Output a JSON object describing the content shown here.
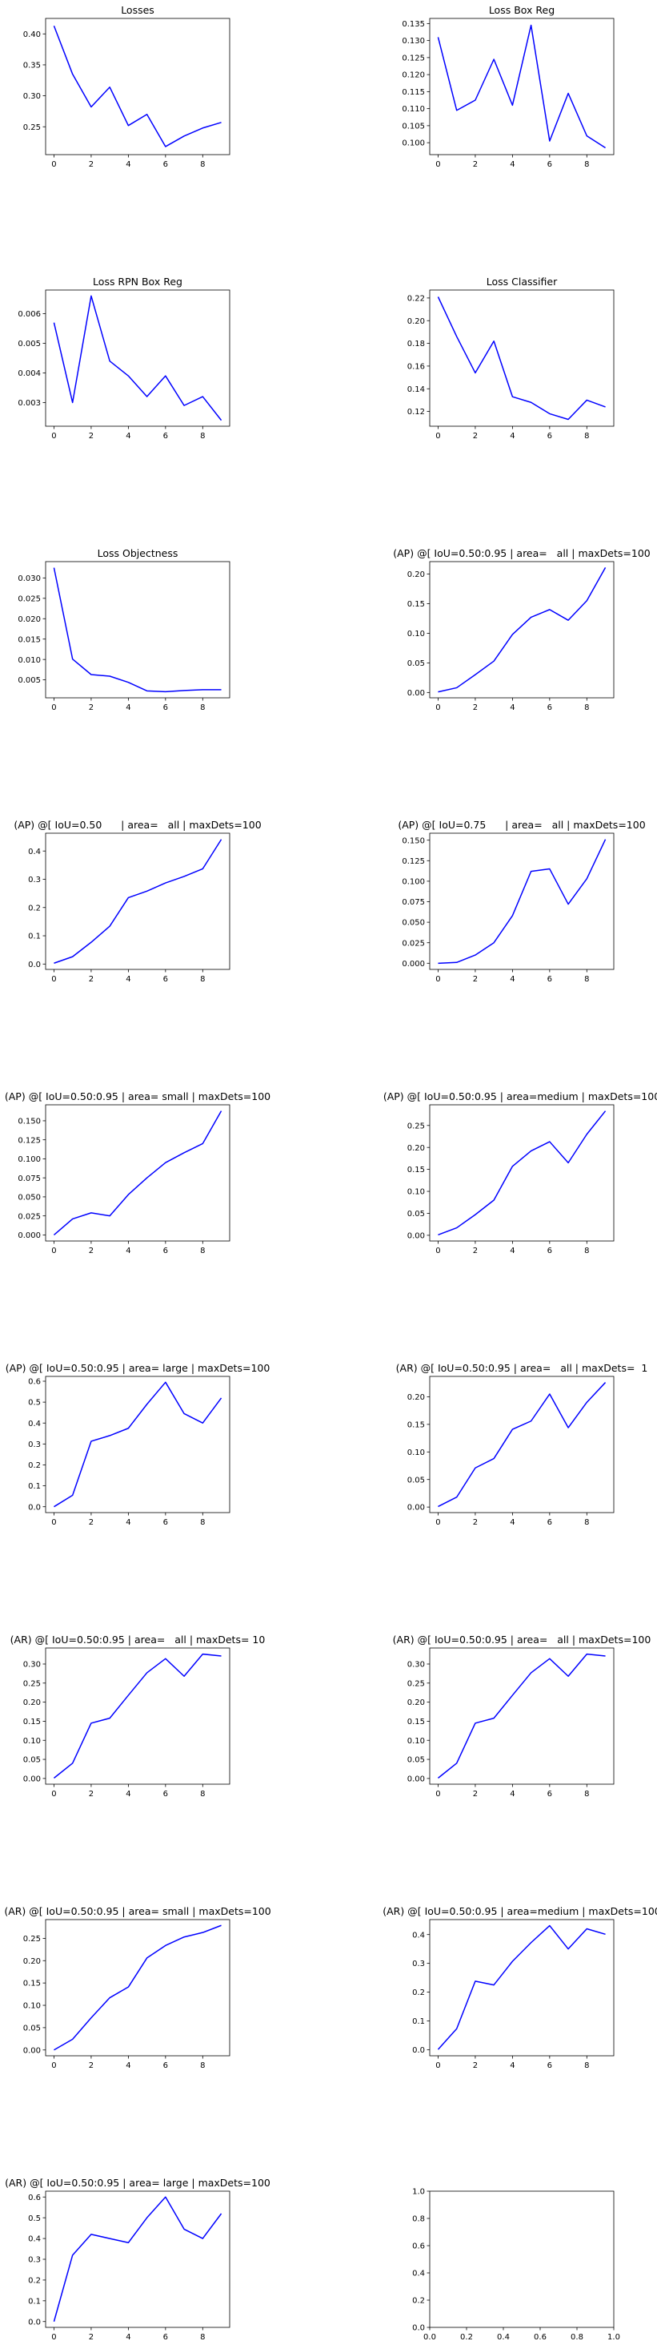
{
  "figure": {
    "line_color": "#0000ff",
    "axes_color": "#000000",
    "background": "#ffffff"
  },
  "chart_data": [
    {
      "type": "line",
      "title": "Losses",
      "x": [
        0,
        1,
        2,
        3,
        4,
        5,
        6,
        7,
        8,
        9
      ],
      "series": [
        {
          "values": [
            0.413,
            0.335,
            0.282,
            0.314,
            0.252,
            0.27,
            0.218,
            0.235,
            0.248,
            0.257
          ]
        }
      ],
      "xlim": [
        -0.45,
        9.45
      ],
      "ylim": [
        0.205,
        0.425
      ],
      "xticks": [
        0,
        2,
        4,
        6,
        8
      ],
      "xtick_labels": [
        "0",
        "2",
        "4",
        "6",
        "8"
      ],
      "yticks": [
        0.25,
        0.3,
        0.35,
        0.4
      ],
      "ytick_labels": [
        "0.25",
        "0.30",
        "0.35",
        "0.40"
      ]
    },
    {
      "type": "line",
      "title": "Loss Box Reg",
      "x": [
        0,
        1,
        2,
        3,
        4,
        5,
        6,
        7,
        8,
        9
      ],
      "series": [
        {
          "values": [
            0.131,
            0.1095,
            0.1125,
            0.1245,
            0.111,
            0.1345,
            0.1005,
            0.1145,
            0.102,
            0.0985
          ]
        }
      ],
      "xlim": [
        -0.45,
        9.45
      ],
      "ylim": [
        0.0965,
        0.1365
      ],
      "xticks": [
        0,
        2,
        4,
        6,
        8
      ],
      "xtick_labels": [
        "0",
        "2",
        "4",
        "6",
        "8"
      ],
      "yticks": [
        0.1,
        0.105,
        0.11,
        0.115,
        0.12,
        0.125,
        0.13,
        0.135
      ],
      "ytick_labels": [
        "0.100",
        "0.105",
        "0.110",
        "0.115",
        "0.120",
        "0.125",
        "0.130",
        "0.135"
      ]
    },
    {
      "type": "line",
      "title": "Loss RPN Box Reg",
      "x": [
        0,
        1,
        2,
        3,
        4,
        5,
        6,
        7,
        8,
        9
      ],
      "series": [
        {
          "values": [
            0.0057,
            0.003,
            0.0066,
            0.0044,
            0.0039,
            0.0032,
            0.0039,
            0.0029,
            0.0032,
            0.0024
          ]
        }
      ],
      "xlim": [
        -0.45,
        9.45
      ],
      "ylim": [
        0.0022,
        0.0068
      ],
      "xticks": [
        0,
        2,
        4,
        6,
        8
      ],
      "xtick_labels": [
        "0",
        "2",
        "4",
        "6",
        "8"
      ],
      "yticks": [
        0.003,
        0.004,
        0.005,
        0.006
      ],
      "ytick_labels": [
        "0.003",
        "0.004",
        "0.005",
        "0.006"
      ]
    },
    {
      "type": "line",
      "title": "Loss Classifier",
      "x": [
        0,
        1,
        2,
        3,
        4,
        5,
        6,
        7,
        8,
        9
      ],
      "series": [
        {
          "values": [
            0.221,
            0.186,
            0.154,
            0.182,
            0.133,
            0.128,
            0.118,
            0.113,
            0.13,
            0.124
          ]
        }
      ],
      "xlim": [
        -0.45,
        9.45
      ],
      "ylim": [
        0.107,
        0.227
      ],
      "xticks": [
        0,
        2,
        4,
        6,
        8
      ],
      "xtick_labels": [
        "0",
        "2",
        "4",
        "6",
        "8"
      ],
      "yticks": [
        0.12,
        0.14,
        0.16,
        0.18,
        0.2,
        0.22
      ],
      "ytick_labels": [
        "0.12",
        "0.14",
        "0.16",
        "0.18",
        "0.20",
        "0.22"
      ]
    },
    {
      "type": "line",
      "title": "Loss Objectness",
      "x": [
        0,
        1,
        2,
        3,
        4,
        5,
        6,
        7,
        8,
        9
      ],
      "series": [
        {
          "values": [
            0.0325,
            0.0101,
            0.0063,
            0.0059,
            0.0044,
            0.0023,
            0.0021,
            0.0024,
            0.0026,
            0.0026
          ]
        }
      ],
      "xlim": [
        -0.45,
        9.45
      ],
      "ylim": [
        0.0006,
        0.034
      ],
      "xticks": [
        0,
        2,
        4,
        6,
        8
      ],
      "xtick_labels": [
        "0",
        "2",
        "4",
        "6",
        "8"
      ],
      "yticks": [
        0.005,
        0.01,
        0.015,
        0.02,
        0.025,
        0.03
      ],
      "ytick_labels": [
        "0.005",
        "0.010",
        "0.015",
        "0.020",
        "0.025",
        "0.030"
      ]
    },
    {
      "type": "line",
      "title": "(AP) @[ IoU=0.50:0.95 | area=   all | maxDets=100",
      "x": [
        0,
        1,
        2,
        3,
        4,
        5,
        6,
        7,
        8,
        9
      ],
      "series": [
        {
          "values": [
            0.001,
            0.008,
            0.03,
            0.053,
            0.098,
            0.127,
            0.14,
            0.122,
            0.155,
            0.211
          ]
        }
      ],
      "xlim": [
        -0.45,
        9.45
      ],
      "ylim": [
        -0.009,
        0.221
      ],
      "xticks": [
        0,
        2,
        4,
        6,
        8
      ],
      "xtick_labels": [
        "0",
        "2",
        "4",
        "6",
        "8"
      ],
      "yticks": [
        0.0,
        0.05,
        0.1,
        0.15,
        0.2
      ],
      "ytick_labels": [
        "0.00",
        "0.05",
        "0.10",
        "0.15",
        "0.20"
      ]
    },
    {
      "type": "line",
      "title": "(AP) @[ IoU=0.50      | area=   all | maxDets=100",
      "x": [
        0,
        1,
        2,
        3,
        4,
        5,
        6,
        7,
        8,
        9
      ],
      "series": [
        {
          "values": [
            0.003,
            0.026,
            0.077,
            0.134,
            0.235,
            0.258,
            0.287,
            0.31,
            0.337,
            0.441
          ]
        }
      ],
      "xlim": [
        -0.45,
        9.45
      ],
      "ylim": [
        -0.019,
        0.463
      ],
      "xticks": [
        0,
        2,
        4,
        6,
        8
      ],
      "xtick_labels": [
        "0",
        "2",
        "4",
        "6",
        "8"
      ],
      "yticks": [
        0.0,
        0.1,
        0.2,
        0.3,
        0.4
      ],
      "ytick_labels": [
        "0.0",
        "0.1",
        "0.2",
        "0.3",
        "0.4"
      ]
    },
    {
      "type": "line",
      "title": "(AP) @[ IoU=0.75      | area=   all | maxDets=100",
      "x": [
        0,
        1,
        2,
        3,
        4,
        5,
        6,
        7,
        8,
        9
      ],
      "series": [
        {
          "values": [
            0.0,
            0.001,
            0.01,
            0.025,
            0.058,
            0.112,
            0.115,
            0.072,
            0.103,
            0.151
          ]
        }
      ],
      "xlim": [
        -0.45,
        9.45
      ],
      "ylim": [
        -0.0075,
        0.1585
      ],
      "xticks": [
        0,
        2,
        4,
        6,
        8
      ],
      "xtick_labels": [
        "0",
        "2",
        "4",
        "6",
        "8"
      ],
      "yticks": [
        0.0,
        0.025,
        0.05,
        0.075,
        0.1,
        0.125,
        0.15
      ],
      "ytick_labels": [
        "0.000",
        "0.025",
        "0.050",
        "0.075",
        "0.100",
        "0.125",
        "0.150"
      ]
    },
    {
      "type": "line",
      "title": "(AP) @[ IoU=0.50:0.95 | area= small | maxDets=100",
      "x": [
        0,
        1,
        2,
        3,
        4,
        5,
        6,
        7,
        8,
        9
      ],
      "series": [
        {
          "values": [
            0.0,
            0.021,
            0.029,
            0.025,
            0.053,
            0.075,
            0.095,
            0.108,
            0.12,
            0.163
          ]
        }
      ],
      "xlim": [
        -0.45,
        9.45
      ],
      "ylim": [
        -0.008,
        0.171
      ],
      "xticks": [
        0,
        2,
        4,
        6,
        8
      ],
      "xtick_labels": [
        "0",
        "2",
        "4",
        "6",
        "8"
      ],
      "yticks": [
        0.0,
        0.025,
        0.05,
        0.075,
        0.1,
        0.125,
        0.15
      ],
      "ytick_labels": [
        "0.000",
        "0.025",
        "0.050",
        "0.075",
        "0.100",
        "0.125",
        "0.150"
      ]
    },
    {
      "type": "line",
      "title": "(AP) @[ IoU=0.50:0.95 | area=medium | maxDets=100",
      "x": [
        0,
        1,
        2,
        3,
        4,
        5,
        6,
        7,
        8,
        9
      ],
      "series": [
        {
          "values": [
            0.001,
            0.017,
            0.047,
            0.08,
            0.157,
            0.192,
            0.213,
            0.165,
            0.23,
            0.283
          ]
        }
      ],
      "xlim": [
        -0.45,
        9.45
      ],
      "ylim": [
        -0.013,
        0.297
      ],
      "xticks": [
        0,
        2,
        4,
        6,
        8
      ],
      "xtick_labels": [
        "0",
        "2",
        "4",
        "6",
        "8"
      ],
      "yticks": [
        0.0,
        0.05,
        0.1,
        0.15,
        0.2,
        0.25
      ],
      "ytick_labels": [
        "0.00",
        "0.05",
        "0.10",
        "0.15",
        "0.20",
        "0.25"
      ]
    },
    {
      "type": "line",
      "title": "(AP) @[ IoU=0.50:0.95 | area= large | maxDets=100",
      "x": [
        0,
        1,
        2,
        3,
        4,
        5,
        6,
        7,
        8,
        9
      ],
      "series": [
        {
          "values": [
            0.0,
            0.055,
            0.313,
            0.34,
            0.375,
            0.49,
            0.595,
            0.445,
            0.4,
            0.52
          ]
        }
      ],
      "xlim": [
        -0.45,
        9.45
      ],
      "ylim": [
        -0.028,
        0.623
      ],
      "xticks": [
        0,
        2,
        4,
        6,
        8
      ],
      "xtick_labels": [
        "0",
        "2",
        "4",
        "6",
        "8"
      ],
      "yticks": [
        0.0,
        0.1,
        0.2,
        0.3,
        0.4,
        0.5,
        0.6
      ],
      "ytick_labels": [
        "0.0",
        "0.1",
        "0.2",
        "0.3",
        "0.4",
        "0.5",
        "0.6"
      ]
    },
    {
      "type": "line",
      "title": "(AR) @[ IoU=0.50:0.95 | area=   all | maxDets=  1",
      "x": [
        0,
        1,
        2,
        3,
        4,
        5,
        6,
        7,
        8,
        9
      ],
      "series": [
        {
          "values": [
            0.001,
            0.018,
            0.071,
            0.088,
            0.141,
            0.156,
            0.205,
            0.144,
            0.19,
            0.226
          ]
        }
      ],
      "xlim": [
        -0.45,
        9.45
      ],
      "ylim": [
        -0.01,
        0.237
      ],
      "xticks": [
        0,
        2,
        4,
        6,
        8
      ],
      "xtick_labels": [
        "0",
        "2",
        "4",
        "6",
        "8"
      ],
      "yticks": [
        0.0,
        0.05,
        0.1,
        0.15,
        0.2
      ],
      "ytick_labels": [
        "0.00",
        "0.05",
        "0.10",
        "0.15",
        "0.20"
      ]
    },
    {
      "type": "line",
      "title": "(AR) @[ IoU=0.50:0.95 | area=   all | maxDets= 10",
      "x": [
        0,
        1,
        2,
        3,
        4,
        5,
        6,
        7,
        8,
        9
      ],
      "series": [
        {
          "values": [
            0.001,
            0.04,
            0.145,
            0.158,
            0.218,
            0.277,
            0.314,
            0.268,
            0.326,
            0.321
          ]
        }
      ],
      "xlim": [
        -0.45,
        9.45
      ],
      "ylim": [
        -0.015,
        0.342
      ],
      "xticks": [
        0,
        2,
        4,
        6,
        8
      ],
      "xtick_labels": [
        "0",
        "2",
        "4",
        "6",
        "8"
      ],
      "yticks": [
        0.0,
        0.05,
        0.1,
        0.15,
        0.2,
        0.25,
        0.3
      ],
      "ytick_labels": [
        "0.00",
        "0.05",
        "0.10",
        "0.15",
        "0.20",
        "0.25",
        "0.30"
      ]
    },
    {
      "type": "line",
      "title": "(AR) @[ IoU=0.50:0.95 | area=   all | maxDets=100",
      "x": [
        0,
        1,
        2,
        3,
        4,
        5,
        6,
        7,
        8,
        9
      ],
      "series": [
        {
          "values": [
            0.001,
            0.04,
            0.145,
            0.158,
            0.218,
            0.277,
            0.314,
            0.268,
            0.326,
            0.321
          ]
        }
      ],
      "xlim": [
        -0.45,
        9.45
      ],
      "ylim": [
        -0.015,
        0.342
      ],
      "xticks": [
        0,
        2,
        4,
        6,
        8
      ],
      "xtick_labels": [
        "0",
        "2",
        "4",
        "6",
        "8"
      ],
      "yticks": [
        0.0,
        0.05,
        0.1,
        0.15,
        0.2,
        0.25,
        0.3
      ],
      "ytick_labels": [
        "0.00",
        "0.05",
        "0.10",
        "0.15",
        "0.20",
        "0.25",
        "0.30"
      ]
    },
    {
      "type": "line",
      "title": "(AR) @[ IoU=0.50:0.95 | area= small | maxDets=100",
      "x": [
        0,
        1,
        2,
        3,
        4,
        5,
        6,
        7,
        8,
        9
      ],
      "series": [
        {
          "values": [
            0.0,
            0.024,
            0.072,
            0.117,
            0.141,
            0.206,
            0.234,
            0.253,
            0.263,
            0.279
          ]
        }
      ],
      "xlim": [
        -0.45,
        9.45
      ],
      "ylim": [
        -0.013,
        0.292
      ],
      "xticks": [
        0,
        2,
        4,
        6,
        8
      ],
      "xtick_labels": [
        "0",
        "2",
        "4",
        "6",
        "8"
      ],
      "yticks": [
        0.0,
        0.05,
        0.1,
        0.15,
        0.2,
        0.25
      ],
      "ytick_labels": [
        "0.00",
        "0.05",
        "0.10",
        "0.15",
        "0.20",
        "0.25"
      ]
    },
    {
      "type": "line",
      "title": "(AR) @[ IoU=0.50:0.95 | area=medium | maxDets=100",
      "x": [
        0,
        1,
        2,
        3,
        4,
        5,
        6,
        7,
        8,
        9
      ],
      "series": [
        {
          "values": [
            0.001,
            0.073,
            0.238,
            0.225,
            0.307,
            0.372,
            0.431,
            0.35,
            0.42,
            0.401
          ]
        }
      ],
      "xlim": [
        -0.45,
        9.45
      ],
      "ylim": [
        -0.021,
        0.452
      ],
      "xticks": [
        0,
        2,
        4,
        6,
        8
      ],
      "xtick_labels": [
        "0",
        "2",
        "4",
        "6",
        "8"
      ],
      "yticks": [
        0.0,
        0.1,
        0.2,
        0.3,
        0.4
      ],
      "ytick_labels": [
        "0.0",
        "0.1",
        "0.2",
        "0.3",
        "0.4"
      ]
    },
    {
      "type": "line",
      "title": "(AR) @[ IoU=0.50:0.95 | area= large | maxDets=100",
      "x": [
        0,
        1,
        2,
        3,
        4,
        5,
        6,
        7,
        8,
        9
      ],
      "series": [
        {
          "values": [
            0.0,
            0.32,
            0.42,
            0.4,
            0.38,
            0.5,
            0.6,
            0.445,
            0.4,
            0.52
          ]
        }
      ],
      "xlim": [
        -0.45,
        9.45
      ],
      "ylim": [
        -0.028,
        0.628
      ],
      "xticks": [
        0,
        2,
        4,
        6,
        8
      ],
      "xtick_labels": [
        "0",
        "2",
        "4",
        "6",
        "8"
      ],
      "yticks": [
        0.0,
        0.1,
        0.2,
        0.3,
        0.4,
        0.5,
        0.6
      ],
      "ytick_labels": [
        "0.0",
        "0.1",
        "0.2",
        "0.3",
        "0.4",
        "0.5",
        "0.6"
      ]
    },
    {
      "type": "line",
      "title": "",
      "x": [],
      "series": [],
      "xlim": [
        0.0,
        1.0
      ],
      "ylim": [
        0.0,
        1.0
      ],
      "xticks": [
        0.0,
        0.2,
        0.4,
        0.6,
        0.8,
        1.0
      ],
      "xtick_labels": [
        "0.0",
        "0.2",
        "0.4",
        "0.6",
        "0.8",
        "1.0"
      ],
      "yticks": [
        0.0,
        0.2,
        0.4,
        0.6,
        0.8,
        1.0
      ],
      "ytick_labels": [
        "0.0",
        "0.2",
        "0.4",
        "0.6",
        "0.8",
        "1.0"
      ]
    }
  ]
}
